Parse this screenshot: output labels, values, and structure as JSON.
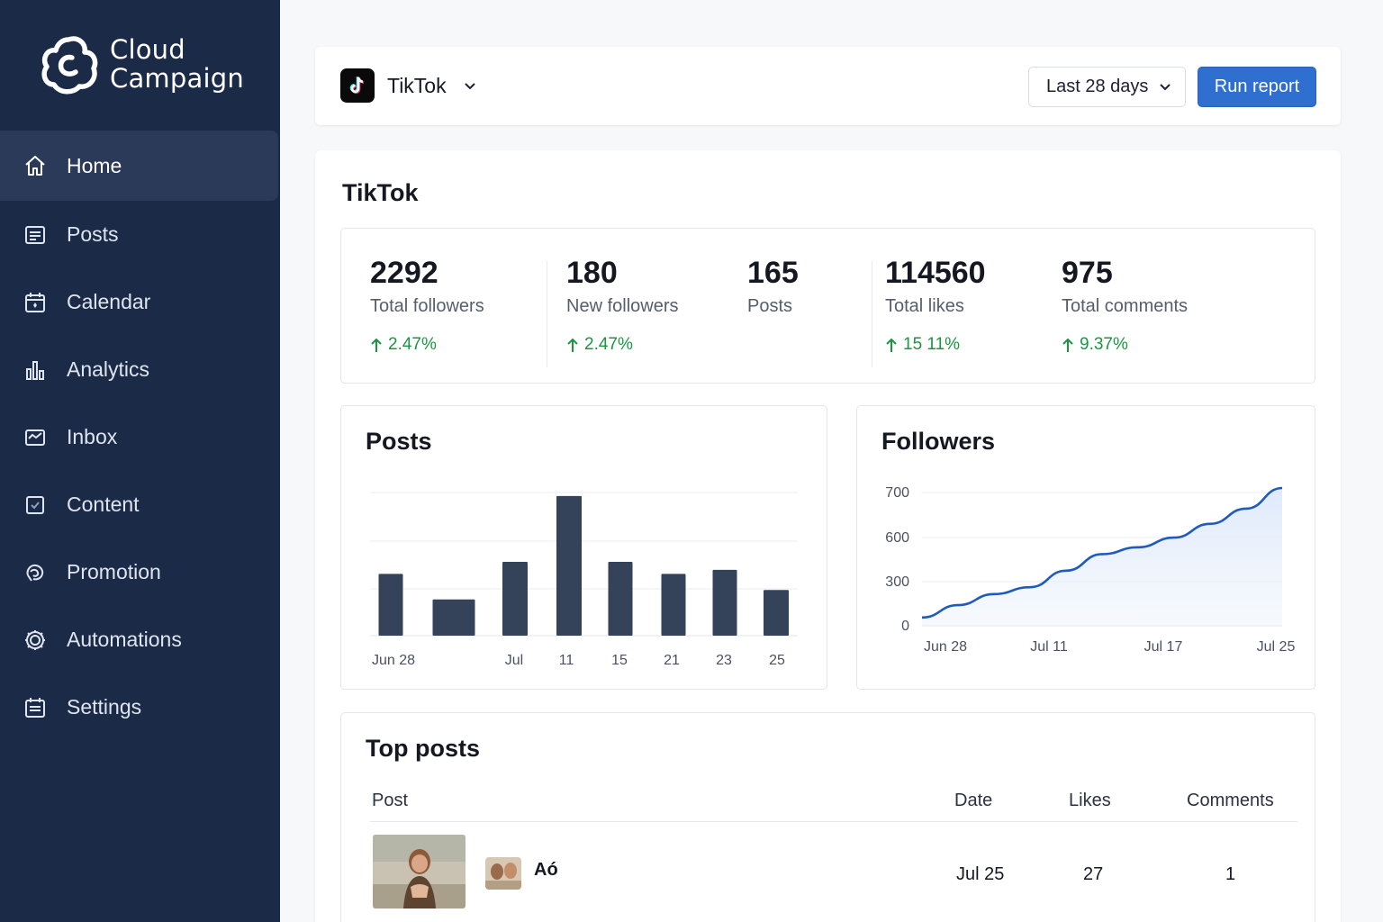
{
  "app": {
    "brand_line1": "Cloud",
    "brand_line2": "Campaign"
  },
  "sidebar": {
    "items": [
      {
        "label": "Home",
        "icon": "home-icon",
        "active": true
      },
      {
        "label": "Posts",
        "icon": "posts-icon"
      },
      {
        "label": "Calendar",
        "icon": "calendar-icon"
      },
      {
        "label": "Analytics",
        "icon": "analytics-icon"
      },
      {
        "label": "Inbox",
        "icon": "inbox-icon"
      },
      {
        "label": "Content",
        "icon": "content-icon"
      },
      {
        "label": "Promotion",
        "icon": "promotion-icon"
      },
      {
        "label": "Automations",
        "icon": "automations-icon"
      },
      {
        "label": "Settings",
        "icon": "settings-icon"
      }
    ]
  },
  "topbar": {
    "network": "TikTok",
    "date_range": "Last 28 days",
    "run_label": "Run report"
  },
  "main": {
    "title": "TikTok"
  },
  "stats": [
    {
      "value": "2292",
      "label": "Total followers",
      "change": "2.47%"
    },
    {
      "value": "180",
      "label": "New followers",
      "change": "2.47%"
    },
    {
      "value": "165",
      "label": "Posts",
      "change": ""
    },
    {
      "value": "114560",
      "label": "Total likes",
      "change": "15 11%"
    },
    {
      "value": "975",
      "label": "Total comments",
      "change": "9.37%"
    }
  ],
  "colors": {
    "sidebar": "#1b2a47",
    "accent": "#2f6fcf",
    "positive": "#1a9641",
    "bar": "#34425a",
    "line": "#1f5bbf"
  },
  "chart_data": [
    {
      "type": "bar",
      "title": "Posts",
      "categories": [
        "Jun 28",
        "",
        "Jul",
        "11",
        "15",
        "21",
        "23",
        "25"
      ],
      "values": [
        46,
        27,
        55,
        104,
        55,
        46,
        49,
        34
      ],
      "ylim": [
        0,
        120
      ],
      "grid": true
    },
    {
      "type": "area",
      "title": "Followers",
      "x_ticks": [
        "Jun 28",
        "Jul 11",
        "Jul 17",
        "Jul 25"
      ],
      "y_ticks": [
        "0",
        "300",
        "600",
        "700"
      ],
      "values": [
        0.06,
        0.15,
        0.23,
        0.28,
        0.4,
        0.52,
        0.57,
        0.64,
        0.74,
        0.85,
        1.0
      ],
      "grid": true
    }
  ],
  "top_posts": {
    "title": "Top posts",
    "headers": {
      "post": "Post",
      "date": "Date",
      "likes": "Likes",
      "comments": "Comments"
    },
    "rows": [
      {
        "title": "Aó",
        "date": "Jul 25",
        "likes": "27",
        "comments": "1"
      }
    ]
  }
}
